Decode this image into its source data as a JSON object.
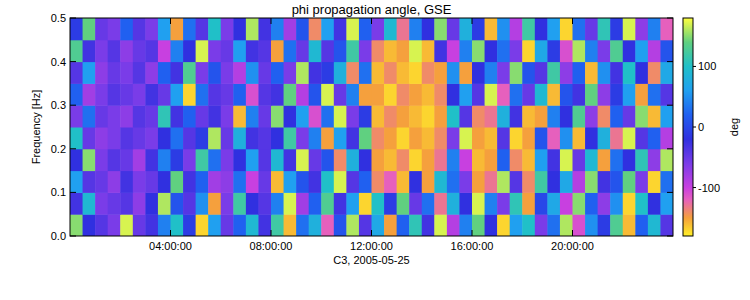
{
  "chart_data": {
    "type": "heatmap",
    "title": "phi propagation angle, GSE",
    "x_label": "C3, 2005-05-25",
    "y_label": "Frequency [Hz]",
    "xlim": [
      0,
      24
    ],
    "xticks": [
      {
        "value": 4,
        "label": "04:00:00"
      },
      {
        "value": 8,
        "label": "08:00:00"
      },
      {
        "value": 12,
        "label": "12:00:00"
      },
      {
        "value": 16,
        "label": "16:00:00"
      },
      {
        "value": 20,
        "label": "20:00:00"
      }
    ],
    "ylim": [
      0,
      0.5
    ],
    "yticks": [
      {
        "value": 0,
        "label": "0.0"
      },
      0.1,
      0.2,
      0.3,
      0.4,
      0.5
    ],
    "colorbar_lim": [
      -180,
      180
    ],
    "colorbar_ticks": [
      -100,
      0,
      100
    ],
    "colorbar_label": "deg",
    "x": [
      0.25,
      0.75,
      1.25,
      1.75,
      2.25,
      2.75,
      3.25,
      3.75,
      4.25,
      4.75,
      5.25,
      5.75,
      6.25,
      6.75,
      7.25,
      7.75,
      8.25,
      8.75,
      9.25,
      9.75,
      10.25,
      10.75,
      11.25,
      11.75,
      12.25,
      12.75,
      13.25,
      13.75,
      14.25,
      14.75,
      15.25,
      15.75,
      16.25,
      16.75,
      17.25,
      17.75,
      18.25,
      18.75,
      19.25,
      19.75,
      20.25,
      20.75,
      21.25,
      21.75,
      22.25,
      22.75,
      23.25,
      23.75
    ],
    "y": [
      0.025,
      0.075,
      0.125,
      0.175,
      0.225,
      0.275,
      0.325,
      0.375,
      0.425,
      0.475
    ],
    "values": [
      [
        150,
        -20,
        -40,
        -60,
        170,
        -50,
        -30,
        40,
        100,
        -10,
        -170,
        60,
        -50,
        20,
        90,
        -30,
        120,
        -160,
        30,
        80,
        -120,
        10,
        160,
        -40,
        70,
        -150,
        20,
        110,
        -30,
        170,
        -90,
        40,
        140,
        -20,
        -170,
        60,
        100,
        -60,
        30,
        160,
        -110,
        50,
        -10,
        130,
        -160,
        20,
        90,
        -40
      ],
      [
        -30,
        90,
        -60,
        -50,
        -40,
        -70,
        -20,
        160,
        10,
        -40,
        50,
        -150,
        -60,
        120,
        -20,
        -40,
        40,
        170,
        -80,
        20,
        130,
        -30,
        60,
        -170,
        100,
        -10,
        140,
        -50,
        30,
        -130,
        80,
        -20,
        170,
        40,
        -60,
        110,
        -150,
        0,
        70,
        -100,
        150,
        20,
        -70,
        50,
        -170,
        100,
        -20,
        60
      ],
      [
        60,
        -40,
        -50,
        -70,
        -30,
        -60,
        -50,
        -20,
        140,
        -30,
        20,
        -80,
        -70,
        30,
        -100,
        -50,
        -160,
        60,
        10,
        -30,
        100,
        170,
        -40,
        20,
        -140,
        -120,
        -160,
        -20,
        -150,
        90,
        30,
        -60,
        -150,
        -130,
        160,
        -40,
        -140,
        120,
        -20,
        70,
        -90,
        150,
        -30,
        10,
        140,
        -60,
        -170,
        30
      ],
      [
        -20,
        150,
        -60,
        -40,
        -50,
        -80,
        -30,
        40,
        -10,
        -60,
        120,
        30,
        -60,
        -20,
        60,
        -40,
        90,
        -30,
        170,
        -50,
        10,
        -140,
        80,
        -20,
        -150,
        -160,
        -140,
        -170,
        -150,
        -130,
        40,
        -100,
        -160,
        -150,
        20,
        -140,
        -160,
        60,
        -30,
        170,
        -50,
        90,
        -150,
        30,
        -20,
        110,
        -70,
        160
      ],
      [
        100,
        -50,
        -70,
        -60,
        -40,
        -50,
        -60,
        -20,
        30,
        -40,
        -10,
        160,
        -50,
        80,
        -30,
        -40,
        -20,
        120,
        -60,
        40,
        -150,
        60,
        -30,
        140,
        -140,
        -150,
        -170,
        -150,
        -160,
        -140,
        -60,
        170,
        -150,
        -160,
        -40,
        -170,
        -150,
        10,
        -120,
        50,
        -160,
        -20,
        80,
        -130,
        170,
        -40,
        20,
        -90
      ],
      [
        -60,
        30,
        -50,
        -60,
        -70,
        -40,
        -50,
        110,
        -30,
        20,
        -50,
        -30,
        -60,
        -160,
        40,
        -50,
        150,
        -20,
        60,
        -110,
        30,
        170,
        -60,
        -10,
        -160,
        -140,
        -150,
        -160,
        -170,
        -150,
        100,
        -40,
        -140,
        -130,
        80,
        -30,
        -160,
        -150,
        40,
        -20,
        130,
        -70,
        -140,
        20,
        -50,
        150,
        -160,
        60
      ],
      [
        20,
        -80,
        -60,
        -40,
        -50,
        -60,
        -30,
        -50,
        60,
        -170,
        30,
        -40,
        -50,
        20,
        -110,
        -40,
        -30,
        140,
        -90,
        10,
        170,
        -50,
        40,
        -150,
        -150,
        -170,
        -140,
        -150,
        -160,
        -140,
        -20,
        60,
        -40,
        170,
        -120,
        30,
        -50,
        90,
        -160,
        10,
        -30,
        140,
        -70,
        -10,
        60,
        -150,
        30,
        -40
      ],
      [
        -40,
        60,
        -70,
        -50,
        -60,
        -40,
        -70,
        20,
        -30,
        130,
        -60,
        10,
        -60,
        -90,
        50,
        -50,
        20,
        -60,
        160,
        -30,
        -10,
        80,
        -140,
        30,
        -160,
        -140,
        -160,
        -170,
        -140,
        -150,
        50,
        -150,
        -20,
        40,
        -60,
        150,
        10,
        -40,
        120,
        -70,
        20,
        -160,
        50,
        -30,
        100,
        -20,
        -140,
        70
      ],
      [
        130,
        -30,
        -60,
        -40,
        -70,
        -50,
        -40,
        -100,
        40,
        -20,
        170,
        -60,
        -50,
        60,
        -30,
        -40,
        -150,
        30,
        -50,
        90,
        -40,
        10,
        120,
        -60,
        -140,
        -160,
        -150,
        170,
        -160,
        -30,
        -100,
        40,
        150,
        -20,
        30,
        -60,
        -170,
        70,
        -10,
        -110,
        160,
        40,
        -60,
        130,
        -20,
        60,
        -90,
        10
      ],
      [
        -10,
        140,
        -50,
        -60,
        20,
        -40,
        -60,
        60,
        -150,
        30,
        -40,
        100,
        -60,
        -20,
        160,
        -30,
        40,
        -80,
        10,
        -140,
        60,
        -30,
        170,
        20,
        -60,
        90,
        -130,
        40,
        -20,
        150,
        -50,
        80,
        -10,
        -160,
        50,
        -90,
        120,
        -20,
        60,
        -170,
        30,
        -50,
        110,
        -10,
        170,
        -70,
        40,
        -120
      ]
    ]
  }
}
